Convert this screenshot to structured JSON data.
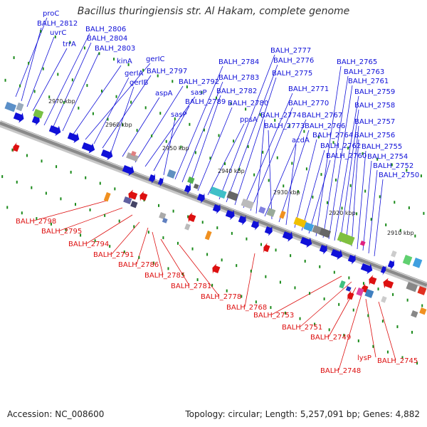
{
  "title": "Bacillus thuringiensis str. Al Hakam, complete genome",
  "accession": "Accession: NC_008600",
  "topology": "Topology: circular; Length: 5,257,091 bp; Genes: 4,882",
  "colors": {
    "forward": "#1010d8",
    "reverse": "#dd1010",
    "backbone": "#8a8a8a",
    "tick": "#1a8a1a"
  },
  "kbp_labels": [
    "2970 kbp",
    "2960 kbp",
    "2950 kbp",
    "2940 kbp",
    "2930 kbp",
    "2920 kbp",
    "2910 kbp"
  ],
  "forward_labels": [
    "proC",
    "BALH_2812",
    "uvrC",
    "trrA",
    "BALH_2806",
    "BALH_2804",
    "BALH_2803",
    "kinA",
    "gerIC",
    "gerIA",
    "BALH_2797",
    "gerIB",
    "aspA",
    "BALH_2792",
    "sasP",
    "BALH_2789",
    "sasP",
    "BALH_2784",
    "BALH_2783",
    "BALH_2782",
    "BALH_2780",
    "ppsA",
    "BALH_2777",
    "BALH_2776",
    "BALH_2775",
    "BALH_2771",
    "BALH_2770",
    "BALH_2774",
    "BALH_2767",
    "BALH_2773",
    "BALH_2766",
    "acdA",
    "BALH_2764",
    "BALH_2762",
    "BALH_2760",
    "BALH_2765",
    "BALH_2763",
    "BALH_2761",
    "BALH_2759",
    "BALH_2758",
    "BALH_2757",
    "BALH_2756",
    "BALH_2755",
    "BALH_2754",
    "BALH_2752",
    "BALH_2750"
  ],
  "reverse_labels": [
    "BALH_2798",
    "BALH_2795",
    "BALH_2794",
    "BALH_2791",
    "BALH_2786",
    "BALH_2785",
    "BALH_2781",
    "BALH_2778",
    "BALH_2768",
    "BALH_2753",
    "BALH_2751",
    "BALH_2749",
    "BALH_2748",
    "lysP",
    "BALH_2745"
  ]
}
